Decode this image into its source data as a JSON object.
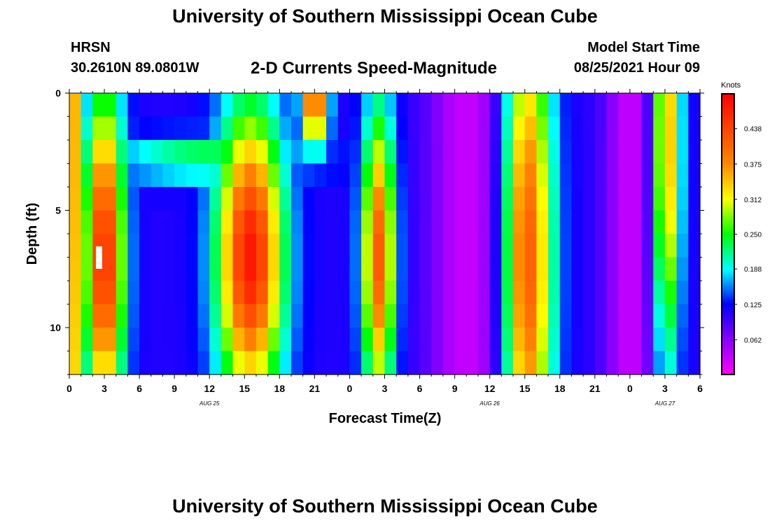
{
  "header": {
    "title": "University of Southern Mississippi Ocean Cube",
    "station": "HRSN",
    "coords": "30.2610N  89.0801W",
    "chart_title": "2-D Currents Speed-Magnitude",
    "start_label": "Model Start Time",
    "start_value": "08/25/2021 Hour 09"
  },
  "footer": {
    "title": "University of Southern Mississippi Ocean Cube"
  },
  "chart_data": {
    "type": "heatmap",
    "title": "2-D Currents Speed-Magnitude",
    "xlabel": "Forecast Time(Z)",
    "ylabel": "Depth (ft)",
    "x_tick_labels": [
      "0",
      "3",
      "6",
      "9",
      "12",
      "15",
      "18",
      "21",
      "0",
      "3",
      "6",
      "9",
      "12",
      "15",
      "18",
      "21",
      "0",
      "3",
      "6"
    ],
    "x_date_labels": [
      "AUG 25",
      "AUG 26",
      "AUG 27"
    ],
    "x_date_label_hours": [
      12,
      36,
      51
    ],
    "x_range_hours": [
      0,
      54
    ],
    "y_tick_labels": [
      "0",
      "5",
      "10"
    ],
    "y_range_ft": [
      0,
      12
    ],
    "y_reversed": true,
    "colorbar": {
      "label": "Knots",
      "range": [
        0,
        0.5
      ],
      "tick_labels": [
        "0.438",
        "0.375",
        "0.312",
        "0.250",
        "0.188",
        "0.125",
        "0.062"
      ],
      "tick_values": [
        0.438,
        0.375,
        0.312,
        0.25,
        0.188,
        0.125,
        0.062
      ]
    },
    "ridges": [
      {
        "t": 0,
        "w": 0.7,
        "amp": 0.42,
        "peak": 0,
        "depth_spread": 30
      },
      {
        "t": 3,
        "w": 1.2,
        "amp": 0.47,
        "peak": 7,
        "depth_spread": 5
      },
      {
        "t": 15.5,
        "w": 2.0,
        "amp": 0.48,
        "peak": 7,
        "depth_spread": 4.5
      },
      {
        "t": 21,
        "w": 0.8,
        "amp": 0.43,
        "peak": 0.5,
        "depth_spread": 1.3
      },
      {
        "t": 26.5,
        "w": 1.0,
        "amp": 0.42,
        "peak": 7,
        "depth_spread": 4.5
      },
      {
        "t": 39,
        "w": 1.6,
        "amp": 0.45,
        "peak": 7,
        "depth_spread": 8
      },
      {
        "t": 51,
        "w": 0.9,
        "amp": 0.4,
        "peak": 2,
        "depth_spread": 7
      },
      {
        "t": 12,
        "w": 6.0,
        "amp": 0.24,
        "peak": 2.8,
        "depth_spread": 0.7
      }
    ],
    "lows": [
      {
        "t": 34,
        "w": 2.3,
        "value": 0.03
      },
      {
        "t": 48,
        "w": 1.5,
        "value": 0.03
      }
    ]
  }
}
